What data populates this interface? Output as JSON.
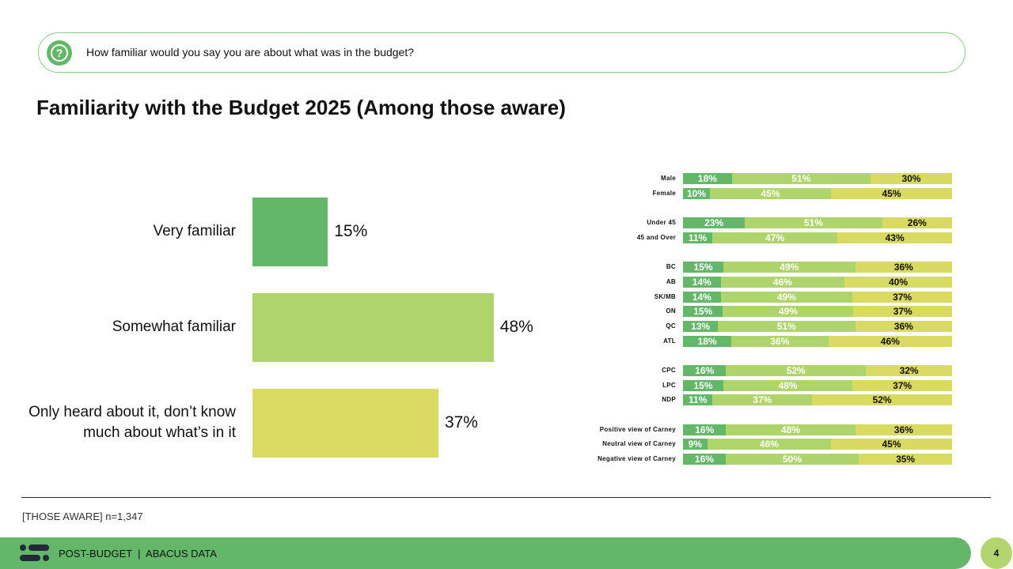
{
  "question": {
    "icon": "question-bubble-icon",
    "text": "How familiar would you say you are about what was in the budget?"
  },
  "title": "Familiarity with the Budget 2025 (Among those aware)",
  "colors": {
    "very": "#64b769",
    "somewhat": "#afd46c",
    "heard": "#d9da61",
    "footer": "#64b769",
    "page": "#b2d56f"
  },
  "chart_data": [
    {
      "type": "bar",
      "orientation": "horizontal",
      "categories": [
        "Very familiar",
        "Somewhat familiar",
        "Only heard about it, don’t know much about what’s in it"
      ],
      "values": [
        15,
        48,
        37
      ],
      "labels": [
        "15%",
        "48%",
        "37%"
      ]
    },
    {
      "type": "bar",
      "orientation": "horizontal",
      "stacked": true,
      "series_order": [
        "Very familiar",
        "Somewhat familiar",
        "Only heard about it"
      ],
      "groups": [
        {
          "rows": [
            {
              "label": "Male",
              "values": [
                18,
                51,
                30
              ]
            },
            {
              "label": "Female",
              "values": [
                10,
                45,
                45
              ]
            }
          ]
        },
        {
          "rows": [
            {
              "label": "Under 45",
              "values": [
                23,
                51,
                26
              ]
            },
            {
              "label": "45 and Over",
              "values": [
                11,
                47,
                43
              ]
            }
          ]
        },
        {
          "rows": [
            {
              "label": "BC",
              "values": [
                15,
                49,
                36
              ]
            },
            {
              "label": "AB",
              "values": [
                14,
                46,
                40
              ]
            },
            {
              "label": "SK/MB",
              "values": [
                14,
                49,
                37
              ]
            },
            {
              "label": "ON",
              "values": [
                15,
                49,
                37
              ]
            },
            {
              "label": "QC",
              "values": [
                13,
                51,
                36
              ]
            },
            {
              "label": "ATL",
              "values": [
                18,
                36,
                46
              ]
            }
          ]
        },
        {
          "rows": [
            {
              "label": "CPC",
              "values": [
                16,
                52,
                32
              ]
            },
            {
              "label": "LPC",
              "values": [
                15,
                48,
                37
              ]
            },
            {
              "label": "NDP",
              "values": [
                11,
                37,
                52
              ]
            }
          ]
        },
        {
          "rows": [
            {
              "label": "Positive view of Carney",
              "values": [
                16,
                48,
                36
              ]
            },
            {
              "label": "Neutral view of Carney",
              "values": [
                9,
                46,
                45
              ]
            },
            {
              "label": "Negative view of Carney",
              "values": [
                16,
                50,
                35
              ]
            }
          ]
        }
      ]
    }
  ],
  "note": "[THOSE AWARE] n=1,347",
  "footer": {
    "text": "POST-BUDGET  |  ABACUS DATA",
    "logo": "abacus-logo-icon"
  },
  "page_number": "4"
}
